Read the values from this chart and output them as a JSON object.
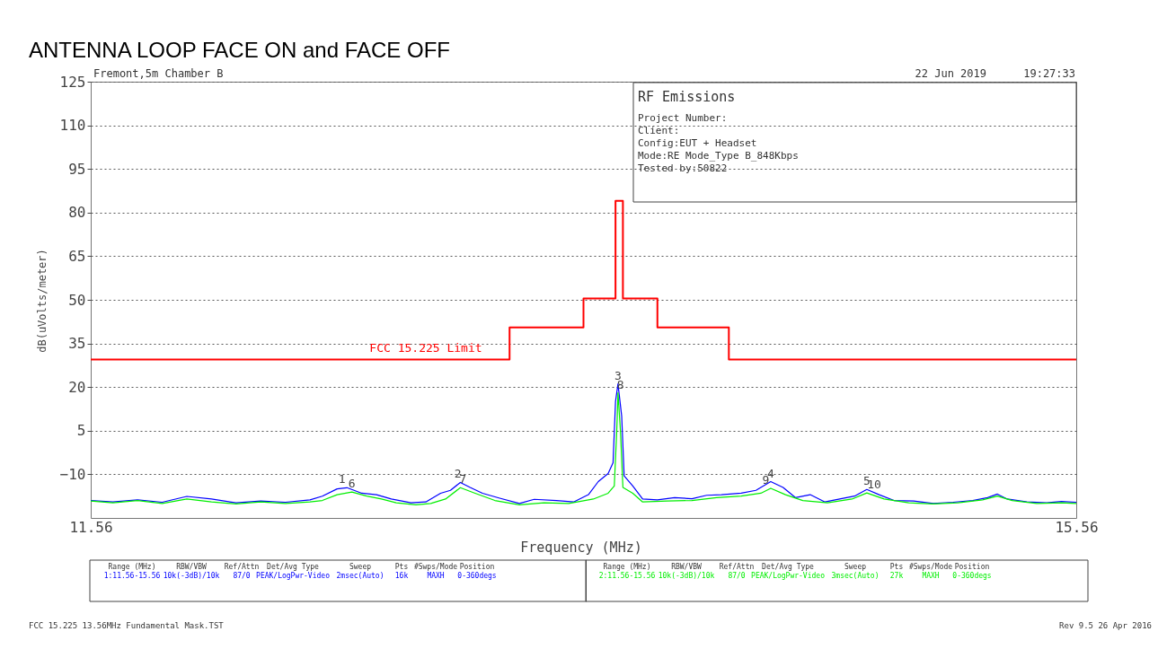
{
  "chart_data": {
    "type": "line",
    "title": "ANTENNA LOOP FACE ON and FACE OFF",
    "xlabel": "Frequency (MHz)",
    "ylabel": "dB(uVolts/meter)",
    "xlim": [
      11.56,
      15.56
    ],
    "xticks": [
      11.56,
      15.56
    ],
    "ylim": [
      -25,
      125
    ],
    "yticks": [
      125,
      110,
      95,
      80,
      65,
      50,
      35,
      20,
      5,
      -10
    ],
    "grid": "y",
    "marker": "none",
    "line_style": "solid",
    "series": [
      {
        "color": "#0000ff",
        "x": [
          11.56,
          11.65,
          11.75,
          11.85,
          11.95,
          12.05,
          12.15,
          12.25,
          12.35,
          12.45,
          12.5,
          12.56,
          12.6,
          12.66,
          12.72,
          12.78,
          12.86,
          12.92,
          12.98,
          13.02,
          13.06,
          13.1,
          13.15,
          13.22,
          13.3,
          13.36,
          13.45,
          13.52,
          13.58,
          13.62,
          13.66,
          13.68,
          13.69,
          13.7,
          13.715,
          13.725,
          13.76,
          13.8,
          13.86,
          13.93,
          14.0,
          14.06,
          14.12,
          14.2,
          14.26,
          14.32,
          14.37,
          14.42,
          14.48,
          14.54,
          14.6,
          14.66,
          14.71,
          14.76,
          14.82,
          14.9,
          14.98,
          15.06,
          15.14,
          15.2,
          15.24,
          15.28,
          15.36,
          15.44,
          15.5,
          15.56
        ],
        "values": [
          -19.0,
          -19.5,
          -18.8,
          -19.6,
          -17.6,
          -18.5,
          -19.8,
          -19.2,
          -19.6,
          -18.8,
          -17.5,
          -15.0,
          -14.6,
          -16.5,
          -17.0,
          -18.5,
          -19.8,
          -19.5,
          -16.5,
          -15.5,
          -12.8,
          -14.5,
          -16.5,
          -18.2,
          -20.0,
          -18.6,
          -19.0,
          -19.5,
          -17.0,
          -12.5,
          -9.7,
          -6,
          15,
          21.1,
          10,
          -10.5,
          -14.0,
          -18.5,
          -18.8,
          -18.0,
          -18.4,
          -17.2,
          -17.0,
          -16.5,
          -15.5,
          -12.5,
          -14.5,
          -18.0,
          -17.0,
          -19.5,
          -18.5,
          -17.5,
          -15.2,
          -17.0,
          -19.0,
          -19.2,
          -20.0,
          -19.6,
          -19.0,
          -18.0,
          -16.8,
          -18.5,
          -19.5,
          -19.8,
          -19.3,
          -19.6
        ]
      },
      {
        "color": "#00ee00",
        "x": [
          11.56,
          11.65,
          11.75,
          11.85,
          11.95,
          12.05,
          12.15,
          12.25,
          12.35,
          12.45,
          12.5,
          12.56,
          12.62,
          12.68,
          12.74,
          12.8,
          12.88,
          12.94,
          13.0,
          13.06,
          13.12,
          13.2,
          13.3,
          13.4,
          13.5,
          13.6,
          13.66,
          13.685,
          13.695,
          13.7,
          13.71,
          13.72,
          13.76,
          13.8,
          13.9,
          14.0,
          14.1,
          14.2,
          14.28,
          14.32,
          14.38,
          14.45,
          14.55,
          14.65,
          14.71,
          14.78,
          14.88,
          14.98,
          15.08,
          15.18,
          15.24,
          15.3,
          15.4,
          15.5,
          15.56
        ],
        "values": [
          -19.2,
          -19.8,
          -19.0,
          -20.0,
          -18.5,
          -19.5,
          -20.2,
          -19.5,
          -20.0,
          -19.5,
          -19.0,
          -17.0,
          -16.1,
          -17.5,
          -18.5,
          -19.8,
          -20.5,
          -20.0,
          -18.5,
          -14.6,
          -16.5,
          -19.0,
          -20.5,
          -19.8,
          -20.0,
          -18.5,
          -16.5,
          -14,
          5,
          18,
          5,
          -14.5,
          -16.5,
          -19.5,
          -19.2,
          -19.0,
          -18.0,
          -17.5,
          -16.5,
          -14.8,
          -17.0,
          -19.0,
          -19.8,
          -18.5,
          -16.4,
          -18.5,
          -19.8,
          -20.2,
          -19.8,
          -18.8,
          -17.5,
          -19.0,
          -20.0,
          -19.8,
          -20.0
        ]
      },
      {
        "name": "FCC 15.225 Limit",
        "color": "#ff0000",
        "x": [
          11.56,
          13.26,
          13.26,
          13.56,
          13.56,
          13.69,
          13.69,
          13.72,
          13.72,
          13.86,
          13.86,
          14.15,
          14.15,
          15.56
        ],
        "values": [
          29.5,
          29.5,
          40.5,
          40.5,
          50.5,
          50.5,
          84,
          84,
          50.5,
          50.5,
          40.5,
          40.5,
          29.5,
          29.5
        ]
      }
    ],
    "annotations": [
      "Fremont,5m Chamber B",
      "22 Jun 2019",
      "19:27:33",
      "RF Emissions",
      "Project Number:",
      "Client:",
      "Config:EUT + Headset",
      "Mode:RE Mode_Type B_848Kbps",
      "Tested by:50822",
      "FCC 15.225 13.56MHz Fundamental Mask.TST",
      "Rev 9.5 26 Apr 2016",
      "Range (MHz)",
      "RBW/VBW",
      "Ref/Attn",
      "Det/Avg Type",
      "Sweep",
      "Pts",
      "#Swps/Mode",
      "Position",
      "1:11.56-15.56",
      "10k(-3dB)/10k",
      "87/0",
      "PEAK/LogPwr-Video",
      "2msec(Auto)",
      "16k",
      "MAXH",
      "0-360degs",
      "Range (MHz)",
      "RBW/VBW",
      "Ref/Attn",
      "Det/Avg Type",
      "Sweep",
      "Pts",
      "#Swps/Mode",
      "Position",
      "2:11.56-15.56",
      "10k(-3dB)/10k",
      "87/0",
      "PEAK/LogPwr-Video",
      "3msec(Auto)",
      "27k",
      "MAXH",
      "0-360degs",
      {
        "text": "1",
        "x": 12.58,
        "y": -14.6
      },
      {
        "text": "2",
        "x": 13.05,
        "y": -12.8
      },
      {
        "text": "3",
        "x": 13.7,
        "y": 21.1
      },
      {
        "text": "4",
        "x": 14.32,
        "y": -12.5
      },
      {
        "text": "5",
        "x": 14.71,
        "y": -15.2
      },
      {
        "text": "6",
        "x": 12.62,
        "y": -16.1
      },
      {
        "text": "7",
        "x": 13.07,
        "y": -14.6
      },
      {
        "text": "8",
        "x": 13.71,
        "y": 18
      },
      {
        "text": "9",
        "x": 14.3,
        "y": -14.8
      },
      {
        "text": "10",
        "x": 14.74,
        "y": -16.4
      }
    ]
  }
}
